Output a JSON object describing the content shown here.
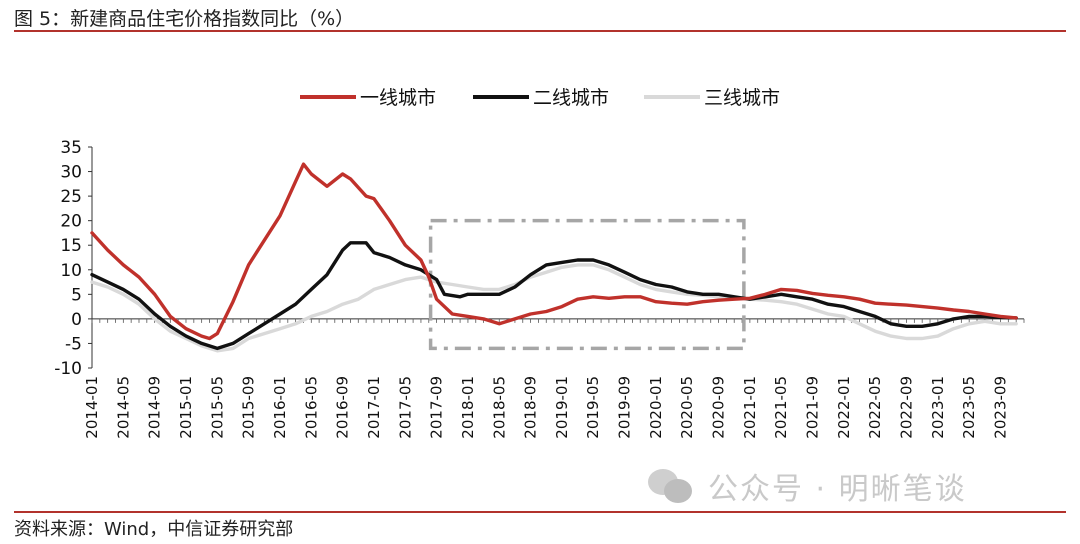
{
  "figure_title": "图 5：新建商品住宅价格指数同比（%）",
  "source_note": "资料来源：Wind，中信证券研究部",
  "watermark": "公众号 · 明晰笔谈",
  "colors": {
    "tier1": "#c0312b",
    "tier2": "#111111",
    "tier3": "#d9d9d9",
    "rule": "#b2322c",
    "box": "#a6a6a6"
  },
  "chart_data": {
    "type": "line",
    "title": "图 5：新建商品住宅价格指数同比（%）",
    "ylabel": "",
    "xlabel": "",
    "ylim": [
      -10,
      35
    ],
    "yticks": [
      35,
      30,
      25,
      20,
      15,
      10,
      5,
      0,
      -5,
      -10
    ],
    "xticks": [
      "2014-01",
      "2014-05",
      "2014-09",
      "2015-01",
      "2015-05",
      "2015-09",
      "2016-01",
      "2016-05",
      "2016-09",
      "2017-01",
      "2017-05",
      "2017-09",
      "2018-01",
      "2018-05",
      "2018-09",
      "2019-01",
      "2019-05",
      "2019-09",
      "2020-01",
      "2020-05",
      "2020-09",
      "2021-01",
      "2021-05",
      "2021-09",
      "2022-01",
      "2022-05",
      "2022-09",
      "2023-01",
      "2023-05",
      "2023-09"
    ],
    "legend_position": "top",
    "grid": false,
    "highlight_box": {
      "from": "2017-09",
      "to": "2021-01",
      "ymin": -6,
      "ymax": 20,
      "style": "dash-dot"
    },
    "series": [
      {
        "name": "一线城市",
        "color": "#c0312b",
        "points": [
          [
            "2014-01",
            17.5
          ],
          [
            "2014-03",
            14
          ],
          [
            "2014-05",
            11
          ],
          [
            "2014-07",
            8.5
          ],
          [
            "2014-09",
            5
          ],
          [
            "2014-11",
            0.5
          ],
          [
            "2015-01",
            -2
          ],
          [
            "2015-03",
            -3.5
          ],
          [
            "2015-04",
            -4
          ],
          [
            "2015-05",
            -3
          ],
          [
            "2015-07",
            3.5
          ],
          [
            "2015-09",
            11
          ],
          [
            "2015-11",
            16
          ],
          [
            "2016-01",
            21
          ],
          [
            "2016-03",
            28
          ],
          [
            "2016-04",
            31.5
          ],
          [
            "2016-05",
            29.5
          ],
          [
            "2016-07",
            27
          ],
          [
            "2016-09",
            29.5
          ],
          [
            "2016-10",
            28.5
          ],
          [
            "2016-12",
            25
          ],
          [
            "2017-01",
            24.5
          ],
          [
            "2017-03",
            20
          ],
          [
            "2017-05",
            15
          ],
          [
            "2017-07",
            12
          ],
          [
            "2017-08",
            8.5
          ],
          [
            "2017-09",
            4
          ],
          [
            "2017-11",
            1
          ],
          [
            "2018-01",
            0.5
          ],
          [
            "2018-03",
            0
          ],
          [
            "2018-05",
            -1
          ],
          [
            "2018-07",
            0
          ],
          [
            "2018-09",
            1
          ],
          [
            "2018-11",
            1.5
          ],
          [
            "2019-01",
            2.5
          ],
          [
            "2019-03",
            4
          ],
          [
            "2019-05",
            4.5
          ],
          [
            "2019-07",
            4.2
          ],
          [
            "2019-09",
            4.5
          ],
          [
            "2019-11",
            4.5
          ],
          [
            "2020-01",
            3.5
          ],
          [
            "2020-03",
            3.2
          ],
          [
            "2020-05",
            3
          ],
          [
            "2020-07",
            3.5
          ],
          [
            "2020-09",
            3.8
          ],
          [
            "2020-11",
            4
          ],
          [
            "2021-01",
            4.2
          ],
          [
            "2021-03",
            5
          ],
          [
            "2021-05",
            6
          ],
          [
            "2021-07",
            5.8
          ],
          [
            "2021-09",
            5.2
          ],
          [
            "2021-11",
            4.8
          ],
          [
            "2022-01",
            4.5
          ],
          [
            "2022-03",
            4
          ],
          [
            "2022-05",
            3.2
          ],
          [
            "2022-07",
            3
          ],
          [
            "2022-09",
            2.8
          ],
          [
            "2022-11",
            2.5
          ],
          [
            "2023-01",
            2.2
          ],
          [
            "2023-03",
            1.8
          ],
          [
            "2023-05",
            1.5
          ],
          [
            "2023-07",
            1
          ],
          [
            "2023-09",
            0.5
          ],
          [
            "2023-11",
            0.2
          ]
        ]
      },
      {
        "name": "二线城市",
        "color": "#111111",
        "points": [
          [
            "2014-01",
            9
          ],
          [
            "2014-03",
            7.5
          ],
          [
            "2014-05",
            6
          ],
          [
            "2014-07",
            4
          ],
          [
            "2014-09",
            1
          ],
          [
            "2014-11",
            -1.5
          ],
          [
            "2015-01",
            -3.5
          ],
          [
            "2015-03",
            -5
          ],
          [
            "2015-05",
            -6
          ],
          [
            "2015-07",
            -5
          ],
          [
            "2015-09",
            -3
          ],
          [
            "2015-11",
            -1
          ],
          [
            "2016-01",
            1
          ],
          [
            "2016-03",
            3
          ],
          [
            "2016-05",
            6
          ],
          [
            "2016-07",
            9
          ],
          [
            "2016-09",
            14
          ],
          [
            "2016-10",
            15.5
          ],
          [
            "2016-12",
            15.5
          ],
          [
            "2017-01",
            13.5
          ],
          [
            "2017-03",
            12.5
          ],
          [
            "2017-05",
            11
          ],
          [
            "2017-07",
            10
          ],
          [
            "2017-09",
            8
          ],
          [
            "2017-10",
            5
          ],
          [
            "2017-12",
            4.5
          ],
          [
            "2018-01",
            5
          ],
          [
            "2018-03",
            5
          ],
          [
            "2018-05",
            5
          ],
          [
            "2018-07",
            6.5
          ],
          [
            "2018-09",
            9
          ],
          [
            "2018-11",
            11
          ],
          [
            "2019-01",
            11.5
          ],
          [
            "2019-03",
            12
          ],
          [
            "2019-05",
            12
          ],
          [
            "2019-07",
            11
          ],
          [
            "2019-09",
            9.5
          ],
          [
            "2019-11",
            8
          ],
          [
            "2020-01",
            7
          ],
          [
            "2020-03",
            6.5
          ],
          [
            "2020-05",
            5.5
          ],
          [
            "2020-07",
            5
          ],
          [
            "2020-09",
            5
          ],
          [
            "2020-11",
            4.5
          ],
          [
            "2021-01",
            4
          ],
          [
            "2021-03",
            4.5
          ],
          [
            "2021-05",
            5
          ],
          [
            "2021-07",
            4.5
          ],
          [
            "2021-09",
            4
          ],
          [
            "2021-11",
            3
          ],
          [
            "2022-01",
            2.5
          ],
          [
            "2022-03",
            1.5
          ],
          [
            "2022-05",
            0.5
          ],
          [
            "2022-07",
            -1
          ],
          [
            "2022-09",
            -1.5
          ],
          [
            "2022-11",
            -1.5
          ],
          [
            "2023-01",
            -1
          ],
          [
            "2023-03",
            0
          ],
          [
            "2023-05",
            0.5
          ],
          [
            "2023-07",
            0.5
          ],
          [
            "2023-09",
            0.3
          ],
          [
            "2023-11",
            0.2
          ]
        ]
      },
      {
        "name": "三线城市",
        "color": "#d9d9d9",
        "points": [
          [
            "2014-01",
            7.5
          ],
          [
            "2014-03",
            6.5
          ],
          [
            "2014-05",
            5
          ],
          [
            "2014-07",
            3
          ],
          [
            "2014-09",
            0
          ],
          [
            "2014-11",
            -2.5
          ],
          [
            "2015-01",
            -4
          ],
          [
            "2015-03",
            -5.5
          ],
          [
            "2015-05",
            -6.5
          ],
          [
            "2015-07",
            -6
          ],
          [
            "2015-09",
            -4
          ],
          [
            "2015-11",
            -3
          ],
          [
            "2016-01",
            -2
          ],
          [
            "2016-03",
            -1
          ],
          [
            "2016-05",
            0.5
          ],
          [
            "2016-07",
            1.5
          ],
          [
            "2016-09",
            3
          ],
          [
            "2016-11",
            4
          ],
          [
            "2017-01",
            6
          ],
          [
            "2017-03",
            7
          ],
          [
            "2017-05",
            8
          ],
          [
            "2017-07",
            8.5
          ],
          [
            "2017-09",
            7.5
          ],
          [
            "2017-11",
            7
          ],
          [
            "2018-01",
            6.5
          ],
          [
            "2018-03",
            6
          ],
          [
            "2018-05",
            6
          ],
          [
            "2018-07",
            7
          ],
          [
            "2018-09",
            8.5
          ],
          [
            "2018-11",
            9.5
          ],
          [
            "2019-01",
            10.5
          ],
          [
            "2019-03",
            11
          ],
          [
            "2019-05",
            11
          ],
          [
            "2019-07",
            10
          ],
          [
            "2019-09",
            8.5
          ],
          [
            "2019-11",
            7
          ],
          [
            "2020-01",
            6
          ],
          [
            "2020-03",
            5.5
          ],
          [
            "2020-05",
            5
          ],
          [
            "2020-07",
            4.8
          ],
          [
            "2020-09",
            4.5
          ],
          [
            "2020-11",
            4.2
          ],
          [
            "2021-01",
            4
          ],
          [
            "2021-03",
            3.8
          ],
          [
            "2021-05",
            3.5
          ],
          [
            "2021-07",
            3
          ],
          [
            "2021-09",
            2
          ],
          [
            "2021-11",
            1
          ],
          [
            "2022-01",
            0.5
          ],
          [
            "2022-03",
            -1
          ],
          [
            "2022-05",
            -2.5
          ],
          [
            "2022-07",
            -3.5
          ],
          [
            "2022-09",
            -4
          ],
          [
            "2022-11",
            -4
          ],
          [
            "2023-01",
            -3.5
          ],
          [
            "2023-03",
            -2
          ],
          [
            "2023-05",
            -1
          ],
          [
            "2023-07",
            -0.5
          ],
          [
            "2023-09",
            -1
          ],
          [
            "2023-11",
            -1
          ]
        ]
      }
    ]
  }
}
